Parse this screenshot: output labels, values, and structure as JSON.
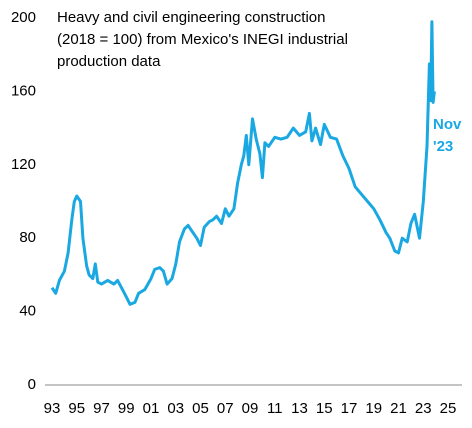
{
  "chart_data": {
    "type": "line",
    "title": [
      "Heavy and civil engineering construction",
      "(2018 = 100) from Mexico's INEGI industrial",
      "production data"
    ],
    "annotation": [
      "Nov",
      "'23"
    ],
    "color": "#1aa8e2",
    "x": [
      1993.0,
      1993.3,
      1993.6,
      1994.0,
      1994.3,
      1994.6,
      1994.8,
      1995.0,
      1995.3,
      1995.5,
      1995.8,
      1996.0,
      1996.3,
      1996.5,
      1996.7,
      1997.0,
      1997.5,
      1998.0,
      1998.3,
      1998.7,
      1999.0,
      1999.3,
      1999.7,
      2000.0,
      2000.5,
      2001.0,
      2001.3,
      2001.7,
      2002.0,
      2002.3,
      2002.7,
      2003.0,
      2003.3,
      2003.7,
      2004.0,
      2004.3,
      2004.7,
      2005.0,
      2005.3,
      2005.7,
      2006.0,
      2006.3,
      2006.7,
      2007.0,
      2007.3,
      2007.7,
      2008.0,
      2008.3,
      2008.5,
      2008.7,
      2008.9,
      2009.2,
      2009.5,
      2009.8,
      2010.0,
      2010.2,
      2010.5,
      2011.0,
      2011.5,
      2012.0,
      2012.5,
      2013.0,
      2013.5,
      2013.8,
      2014.0,
      2014.3,
      2014.7,
      2015.0,
      2015.5,
      2016.0,
      2016.5,
      2017.0,
      2017.5,
      2018.0,
      2018.5,
      2019.0,
      2019.5,
      2020.0,
      2020.3,
      2020.7,
      2021.0,
      2021.3,
      2021.7,
      2022.0,
      2022.3,
      2022.7,
      2023.0,
      2023.3,
      2023.5,
      2023.6,
      2023.7,
      2023.8,
      2023.9
    ],
    "values": [
      53,
      50,
      57,
      62,
      72,
      90,
      100,
      103,
      100,
      80,
      65,
      60,
      58,
      66,
      56,
      55,
      57,
      55,
      57,
      52,
      48,
      44,
      45,
      50,
      52,
      58,
      63,
      64,
      62,
      55,
      58,
      66,
      78,
      85,
      87,
      84,
      80,
      76,
      86,
      89,
      90,
      92,
      88,
      96,
      92,
      96,
      110,
      120,
      125,
      136,
      120,
      145,
      134,
      126,
      113,
      132,
      130,
      135,
      134,
      135,
      140,
      136,
      138,
      148,
      133,
      140,
      131,
      142,
      135,
      134,
      125,
      118,
      108,
      104,
      100,
      96,
      90,
      83,
      80,
      73,
      72,
      80,
      78,
      88,
      93,
      80,
      100,
      130,
      175,
      155,
      198,
      154,
      160
    ],
    "xlim": [
      1993,
      2025
    ],
    "xticks": [
      {
        "value": 1993,
        "label": "93"
      },
      {
        "value": 1995,
        "label": "95"
      },
      {
        "value": 1997,
        "label": "97"
      },
      {
        "value": 1999,
        "label": "99"
      },
      {
        "value": 2001,
        "label": "01"
      },
      {
        "value": 2003,
        "label": "03"
      },
      {
        "value": 2005,
        "label": "05"
      },
      {
        "value": 2007,
        "label": "07"
      },
      {
        "value": 2009,
        "label": "09"
      },
      {
        "value": 2011,
        "label": "11"
      },
      {
        "value": 2013,
        "label": "13"
      },
      {
        "value": 2015,
        "label": "15"
      },
      {
        "value": 2017,
        "label": "17"
      },
      {
        "value": 2019,
        "label": "19"
      },
      {
        "value": 2021,
        "label": "21"
      },
      {
        "value": 2023,
        "label": "23"
      },
      {
        "value": 2025,
        "label": "25"
      }
    ],
    "ylim": [
      0,
      200
    ],
    "yticks": [
      0,
      40,
      80,
      120,
      160,
      200
    ]
  }
}
